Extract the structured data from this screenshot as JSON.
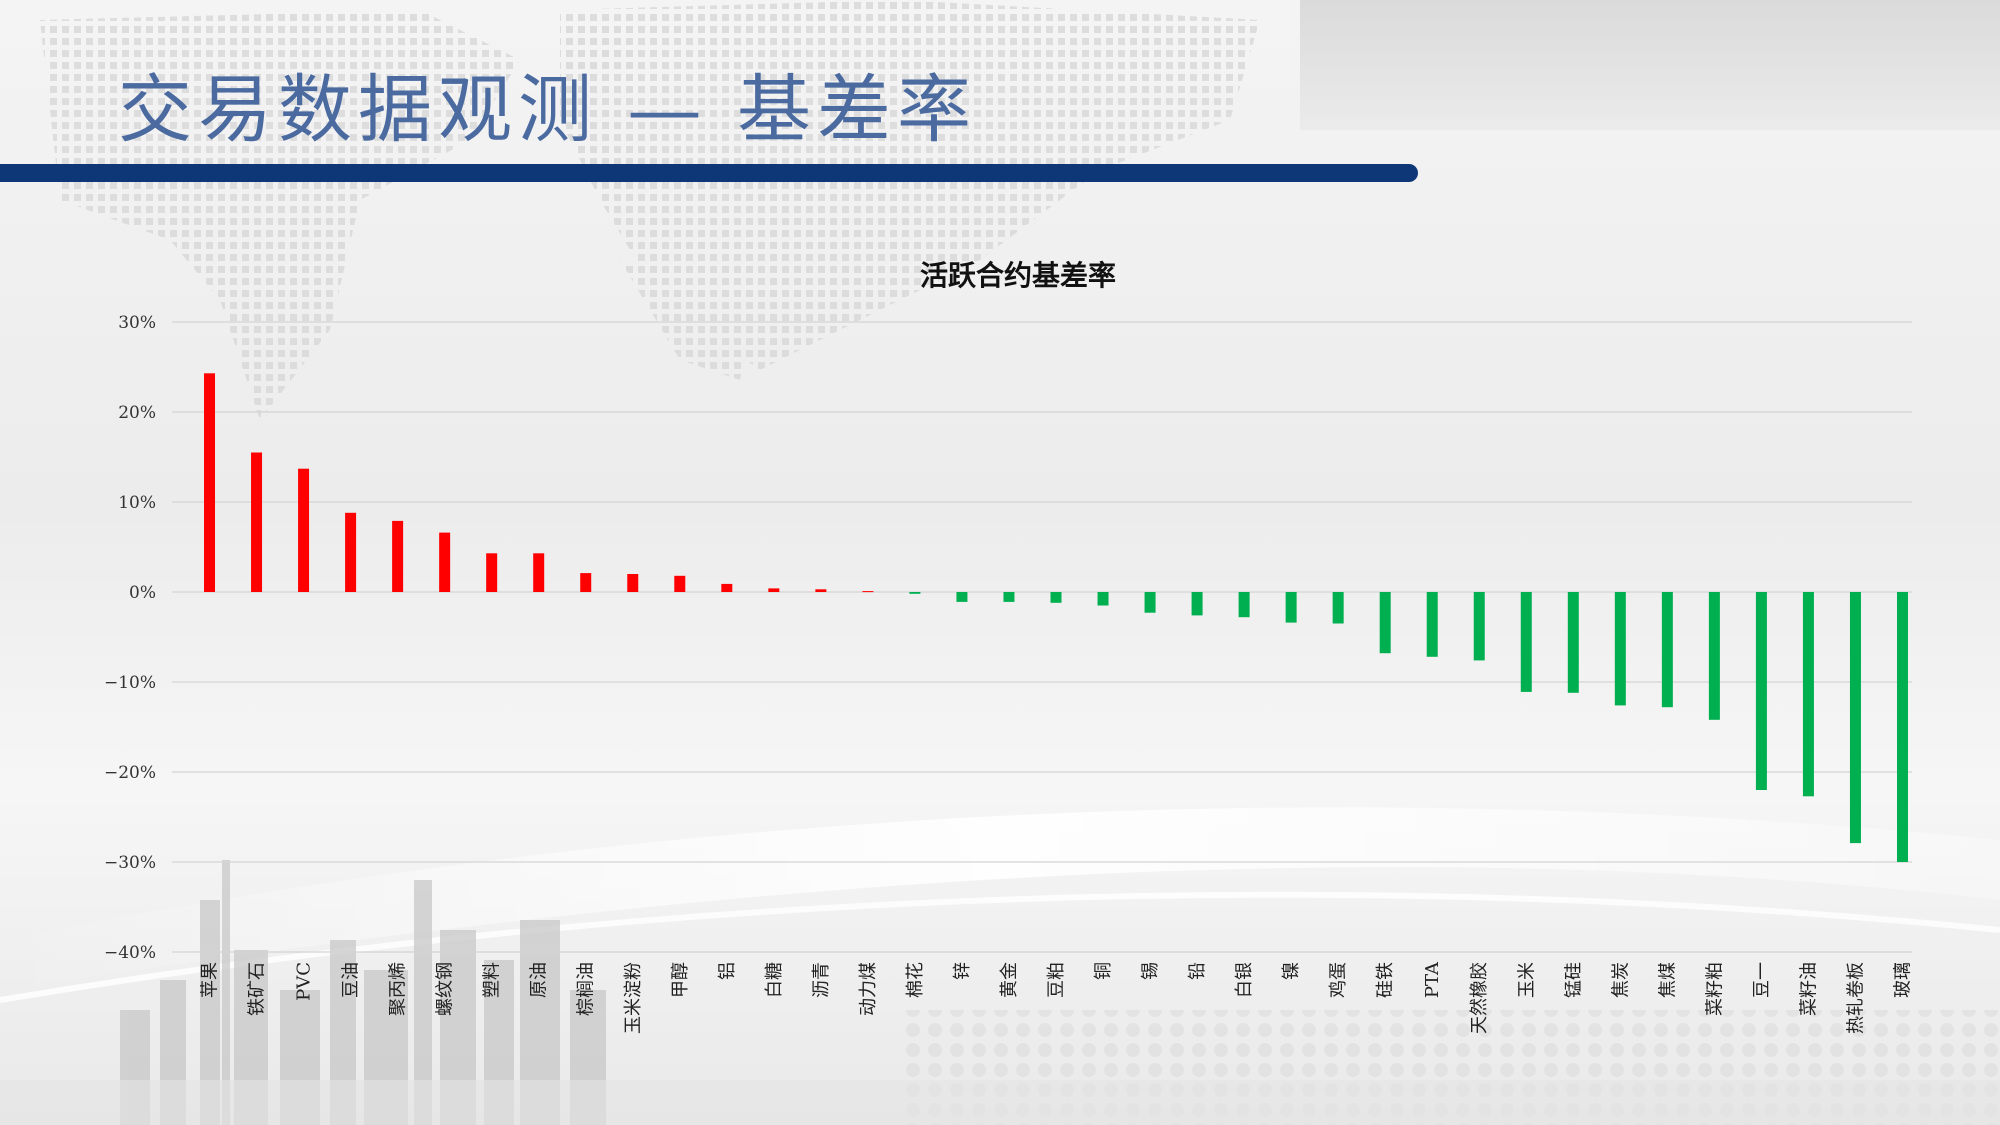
{
  "header": {
    "title": "交易数据观测 — 基差率"
  },
  "colors": {
    "positive": "#ff0000",
    "negative": "#00b050",
    "accent": "#0e3778"
  },
  "chart_data": {
    "type": "bar",
    "title": "活跃合约基差率",
    "xlabel": "",
    "ylabel": "",
    "ylim": [
      -0.4,
      0.3
    ],
    "yticks": [
      {
        "value": 0.3,
        "label": "30%"
      },
      {
        "value": 0.2,
        "label": "20%"
      },
      {
        "value": 0.1,
        "label": "10%"
      },
      {
        "value": 0,
        "label": "0%"
      },
      {
        "value": -0.1,
        "label": "−10%"
      },
      {
        "value": -0.2,
        "label": "−20%"
      },
      {
        "value": -0.3,
        "label": "−30%"
      },
      {
        "value": -0.4,
        "label": "−40%"
      }
    ],
    "grid": true,
    "categories": [
      "苹果",
      "铁矿石",
      "PVC",
      "豆油",
      "聚丙烯",
      "螺纹钢",
      "塑料",
      "原油",
      "棕榈油",
      "玉米淀粉",
      "甲醇",
      "铝",
      "白糖",
      "沥青",
      "动力煤",
      "棉花",
      "锌",
      "黄金",
      "豆粕",
      "铜",
      "锡",
      "铅",
      "白银",
      "镍",
      "鸡蛋",
      "硅铁",
      "PTA",
      "天然橡胶",
      "玉米",
      "锰硅",
      "焦炭",
      "焦煤",
      "菜籽粕",
      "豆一",
      "菜籽油",
      "热轧卷板",
      "玻璃"
    ],
    "values": [
      0.243,
      0.155,
      0.137,
      0.088,
      0.079,
      0.066,
      0.043,
      0.043,
      0.021,
      0.02,
      0.018,
      0.009,
      0.004,
      0.003,
      0.001,
      -0.002,
      -0.011,
      -0.011,
      -0.012,
      -0.015,
      -0.023,
      -0.026,
      -0.028,
      -0.034,
      -0.035,
      -0.068,
      -0.072,
      -0.076,
      -0.111,
      -0.112,
      -0.126,
      -0.128,
      -0.142,
      -0.22,
      -0.227,
      -0.279,
      -0.3
    ]
  }
}
